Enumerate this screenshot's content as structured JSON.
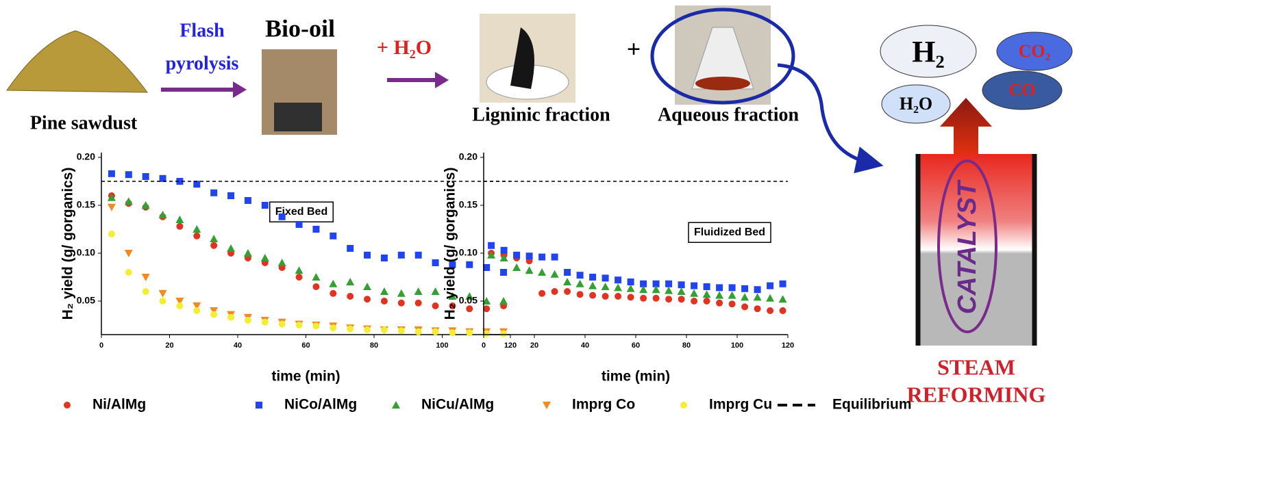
{
  "diagram": {
    "pine": "Pine sawdust",
    "flash": [
      "Flash",
      "pyrolysis"
    ],
    "biooil": "Bio-oil",
    "water": "+ H₂O",
    "ligninic": "Ligninic fraction",
    "plus": "+",
    "aqueous": "Aqueous fraction",
    "gases": [
      "H₂",
      "CO₂",
      "H₂O",
      "CO"
    ],
    "catalyst": "CATALYST",
    "reforming": [
      "STEAM",
      "REFORMING"
    ]
  },
  "chart_data": [
    {
      "type": "scatter",
      "annotation": "Fixed Bed",
      "x_label": "time (min)",
      "y_label": "H₂ yield (g/ gorganics)",
      "xlim": [
        0,
        120
      ],
      "ylim": [
        0.015,
        0.205
      ],
      "xticks": [
        0,
        20,
        40,
        60,
        80,
        100,
        120
      ],
      "yticks": [
        {
          "value": 0.05,
          "label": "0.05"
        },
        {
          "value": 0.1,
          "label": "0.10"
        },
        {
          "value": 0.15,
          "label": "0.15"
        },
        {
          "value": 0.2,
          "label": "0.20"
        }
      ],
      "series": [
        {
          "name": "Ni/AlMg",
          "color": "#e03322",
          "marker": "circle",
          "x": [
            3,
            8,
            13,
            18,
            23,
            28,
            33,
            38,
            43,
            48,
            53,
            58,
            63,
            68,
            73,
            78,
            83,
            88,
            93,
            98,
            103,
            108,
            113,
            118
          ],
          "values": [
            0.16,
            0.152,
            0.148,
            0.138,
            0.128,
            0.118,
            0.108,
            0.1,
            0.095,
            0.09,
            0.085,
            0.075,
            0.065,
            0.058,
            0.055,
            0.052,
            0.05,
            0.048,
            0.048,
            0.045,
            0.045,
            0.042,
            0.042,
            0.045
          ]
        },
        {
          "name": "NiCo/AlMg",
          "color": "#2244ee",
          "marker": "square",
          "x": [
            3,
            8,
            13,
            18,
            23,
            28,
            33,
            38,
            43,
            48,
            53,
            58,
            63,
            68,
            73,
            78,
            83,
            88,
            93,
            98,
            103,
            108,
            113,
            118
          ],
          "values": [
            0.183,
            0.182,
            0.18,
            0.178,
            0.175,
            0.172,
            0.163,
            0.16,
            0.155,
            0.15,
            0.138,
            0.13,
            0.125,
            0.118,
            0.105,
            0.098,
            0.095,
            0.098,
            0.098,
            0.09,
            0.088,
            0.088,
            0.085,
            0.08
          ]
        },
        {
          "name": "NiCu/AlMg",
          "color": "#33a033",
          "marker": "triangle-up",
          "x": [
            3,
            8,
            13,
            18,
            23,
            28,
            33,
            38,
            43,
            48,
            53,
            58,
            63,
            68,
            73,
            78,
            83,
            88,
            93,
            98,
            103,
            108,
            113,
            118
          ],
          "values": [
            0.158,
            0.154,
            0.15,
            0.14,
            0.135,
            0.125,
            0.115,
            0.105,
            0.1,
            0.095,
            0.09,
            0.082,
            0.075,
            0.068,
            0.07,
            0.065,
            0.06,
            0.058,
            0.06,
            0.06,
            0.055,
            0.055,
            0.05,
            0.05
          ]
        },
        {
          "name": "Imprg Co",
          "color": "#f08a22",
          "marker": "triangle-down",
          "x": [
            3,
            8,
            13,
            18,
            23,
            28,
            33,
            38,
            43,
            48,
            53,
            58,
            63,
            68,
            73,
            78,
            83,
            88,
            93,
            98,
            103,
            108,
            113,
            118
          ],
          "values": [
            0.148,
            0.1,
            0.075,
            0.058,
            0.05,
            0.045,
            0.04,
            0.036,
            0.033,
            0.03,
            0.028,
            0.026,
            0.025,
            0.024,
            0.022,
            0.021,
            0.02,
            0.02,
            0.02,
            0.019,
            0.019,
            0.018,
            0.018,
            0.018
          ]
        },
        {
          "name": "Imprg Cu",
          "color": "#f4ee33",
          "marker": "circle",
          "x": [
            3,
            8,
            13,
            18,
            23,
            28,
            33,
            38,
            43,
            48,
            53,
            58,
            63,
            68,
            73,
            78,
            83,
            88,
            93,
            98,
            103,
            108,
            113,
            118
          ],
          "values": [
            0.12,
            0.08,
            0.06,
            0.05,
            0.045,
            0.04,
            0.036,
            0.033,
            0.03,
            0.028,
            0.026,
            0.025,
            0.024,
            0.022,
            0.021,
            0.02,
            0.02,
            0.019,
            0.018,
            0.018,
            0.017,
            0.017,
            0.016,
            0.016
          ]
        },
        {
          "name": "Equilibrium",
          "color": "#000000",
          "marker": "dashed-line",
          "x": [
            0,
            120
          ],
          "values": [
            0.175,
            0.175
          ]
        }
      ]
    },
    {
      "type": "scatter",
      "annotation": "Fluidized Bed",
      "x_label": "time (min)",
      "y_label": "H₂ yield (g/ gorganics)",
      "xlim": [
        0,
        120
      ],
      "ylim": [
        0.015,
        0.205
      ],
      "xticks": [
        0,
        20,
        40,
        60,
        80,
        100,
        120
      ],
      "yticks": [
        {
          "value": 0.05,
          "label": "0.05"
        },
        {
          "value": 0.1,
          "label": "0.10"
        },
        {
          "value": 0.15,
          "label": "0.15"
        },
        {
          "value": 0.2,
          "label": "0.20"
        }
      ],
      "series": [
        {
          "color": "#e03322",
          "marker": "circle",
          "x": [
            3,
            8,
            13,
            18,
            23,
            28,
            33,
            38,
            43,
            48,
            53,
            58,
            63,
            68,
            73,
            78,
            83,
            88,
            93,
            98,
            103,
            108,
            113,
            118
          ],
          "values": [
            0.1,
            0.098,
            0.095,
            0.092,
            0.058,
            0.06,
            0.06,
            0.057,
            0.056,
            0.055,
            0.055,
            0.054,
            0.053,
            0.053,
            0.052,
            0.052,
            0.05,
            0.05,
            0.048,
            0.047,
            0.044,
            0.042,
            0.04,
            0.04
          ]
        },
        {
          "color": "#2244ee",
          "marker": "square",
          "x": [
            3,
            8,
            13,
            18,
            23,
            28,
            33,
            38,
            43,
            48,
            53,
            58,
            63,
            68,
            73,
            78,
            83,
            88,
            93,
            98,
            103,
            108,
            113,
            118
          ],
          "values": [
            0.108,
            0.103,
            0.098,
            0.097,
            0.096,
            0.096,
            0.08,
            0.077,
            0.075,
            0.074,
            0.072,
            0.07,
            0.068,
            0.068,
            0.068,
            0.067,
            0.066,
            0.065,
            0.064,
            0.064,
            0.063,
            0.062,
            0.066,
            0.068
          ]
        },
        {
          "color": "#33a033",
          "marker": "triangle-up",
          "x": [
            3,
            8,
            13,
            18,
            23,
            28,
            33,
            38,
            43,
            48,
            53,
            58,
            63,
            68,
            73,
            78,
            83,
            88,
            93,
            98,
            103,
            108,
            113,
            118
          ],
          "values": [
            0.098,
            0.095,
            0.085,
            0.082,
            0.08,
            0.078,
            0.07,
            0.068,
            0.066,
            0.065,
            0.064,
            0.063,
            0.062,
            0.062,
            0.061,
            0.06,
            0.058,
            0.057,
            0.056,
            0.056,
            0.054,
            0.054,
            0.053,
            0.052
          ]
        },
        {
          "color": "#000000",
          "marker": "dashed-line",
          "x": [
            0,
            120
          ],
          "values": [
            0.175,
            0.175
          ]
        }
      ]
    }
  ]
}
